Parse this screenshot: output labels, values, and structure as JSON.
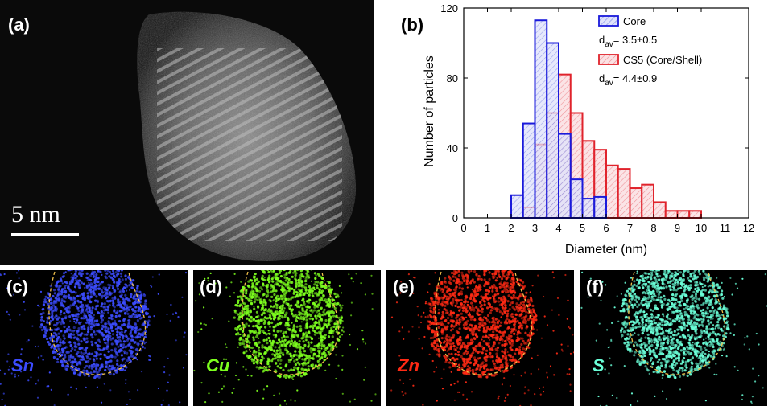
{
  "panels": {
    "a": {
      "label": "(a)",
      "scale_label": "5 nm"
    },
    "b": {
      "label": "(b)"
    },
    "c": {
      "label": "(c)",
      "element": "Sn",
      "color": "#3c4cff"
    },
    "d": {
      "label": "(d)",
      "element": "Cu",
      "color": "#7dff1e"
    },
    "e": {
      "label": "(e)",
      "element": "Zn",
      "color": "#ff2a14"
    },
    "f": {
      "label": "(f)",
      "element": "S",
      "color": "#6affd8"
    }
  },
  "chart_data": {
    "type": "bar",
    "title": "",
    "xlabel": "Diameter (nm)",
    "ylabel": "Number of particles",
    "xlim": [
      0,
      12
    ],
    "ylim": [
      0,
      120
    ],
    "xticks": [
      0,
      1,
      2,
      3,
      4,
      5,
      6,
      7,
      8,
      9,
      10,
      11,
      12
    ],
    "yticks": [
      0,
      40,
      80,
      120
    ],
    "bin_width": 0.5,
    "legend_position": "top-right",
    "series": [
      {
        "name": "Core",
        "subtitle": "d",
        "subtitle_sub": "av",
        "subtitle_value": "= 3.5±0.5",
        "color": "#1a1adb",
        "fill": "#aeb4f0",
        "x": [
          2.25,
          2.75,
          3.25,
          3.75,
          4.25,
          4.75,
          5.25,
          5.75
        ],
        "values": [
          13,
          54,
          113,
          100,
          48,
          22,
          11,
          12
        ]
      },
      {
        "name": "CS5 (Core/Shell)",
        "subtitle": "d",
        "subtitle_sub": "av",
        "subtitle_value": "= 4.4±0.9",
        "color": "#e0232c",
        "fill": "#f3aeb3",
        "x": [
          2.75,
          3.25,
          3.75,
          4.25,
          4.75,
          5.25,
          5.75,
          6.25,
          6.75,
          7.25,
          7.75,
          8.25,
          8.75,
          9.25,
          9.75
        ],
        "values": [
          6,
          42,
          60,
          82,
          60,
          44,
          39,
          30,
          28,
          17,
          19,
          9,
          4,
          4,
          4
        ]
      }
    ]
  }
}
